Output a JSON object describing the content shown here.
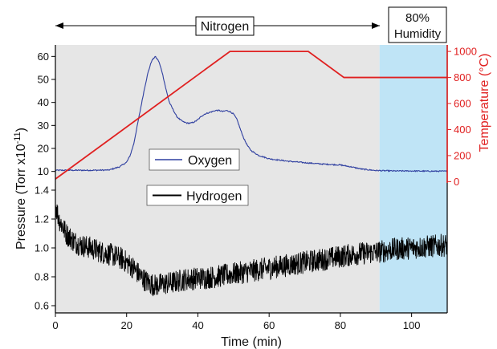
{
  "chart_data": [
    {
      "panel": "top",
      "type": "line",
      "ylabel_left": "Pressure (Torr x10",
      "ylabel_left_exponent": "-11",
      "ylabel_left_tail": ")",
      "ylabel_right": "Temperature (°C)",
      "xlim": [
        0,
        110
      ],
      "ylim_left": [
        5,
        65
      ],
      "ylim_right": [
        -10,
        1050
      ],
      "yticks_left": [
        10,
        20,
        30,
        40,
        50,
        60
      ],
      "yticks_right": [
        0,
        200,
        400,
        600,
        800,
        1000
      ],
      "legend": "Oxygen",
      "grid": false,
      "series": [
        {
          "name": "Oxygen",
          "axis": "left",
          "color": "#2f3fa0",
          "x": [
            0,
            5,
            10,
            15,
            18,
            20,
            21,
            22,
            23,
            24,
            25,
            26,
            27,
            28,
            29,
            30,
            31,
            32,
            33,
            34,
            35,
            36,
            37,
            38,
            39,
            40,
            41,
            42,
            43,
            44,
            45,
            46,
            47,
            48,
            49,
            50,
            51,
            52,
            53,
            54,
            55,
            57,
            60,
            65,
            70,
            75,
            80,
            83,
            86,
            90,
            95,
            100,
            105,
            110
          ],
          "y": [
            10.5,
            10.5,
            10.5,
            10.6,
            12,
            14,
            17,
            22,
            30,
            38,
            46,
            53,
            58,
            60,
            58,
            53,
            46,
            40,
            37,
            34,
            32.5,
            31.5,
            31,
            31,
            31.5,
            32.5,
            34,
            35,
            35.5,
            36,
            36.5,
            36.5,
            36,
            36.5,
            36,
            35,
            32.5,
            28,
            24,
            21,
            19,
            17,
            15.5,
            14.5,
            13.8,
            13.2,
            12.8,
            12,
            11,
            10.4,
            10.2,
            10.2,
            10.1,
            10.1
          ]
        },
        {
          "name": "Temperature",
          "axis": "right",
          "color": "#e02020",
          "x": [
            0,
            49,
            71,
            81,
            110
          ],
          "y": [
            20,
            1000,
            1000,
            800,
            800
          ]
        }
      ]
    },
    {
      "panel": "bottom",
      "type": "line",
      "xlabel": "Time (min)",
      "xlim": [
        0,
        110
      ],
      "ylim": [
        0.55,
        1.45
      ],
      "xticks": [
        0,
        20,
        40,
        60,
        80,
        100
      ],
      "yticks": [
        0.6,
        0.8,
        1.0,
        1.2,
        1.4
      ],
      "ytick_labels": [
        "0.6",
        "0.8",
        "1.0",
        "1.2",
        "1.4"
      ],
      "legend": "Hydrogen",
      "grid": false,
      "series": [
        {
          "name": "Hydrogen",
          "color": "#000000",
          "x": [
            0,
            1,
            2,
            3,
            5,
            7,
            10,
            13,
            16,
            19,
            22,
            24,
            26,
            28,
            30,
            33,
            36,
            40,
            45,
            50,
            55,
            60,
            65,
            70,
            75,
            80,
            85,
            90,
            95,
            100,
            105,
            110
          ],
          "y": [
            1.3,
            1.2,
            1.15,
            1.1,
            1.05,
            1.02,
            1.0,
            0.97,
            0.95,
            0.92,
            0.86,
            0.8,
            0.76,
            0.74,
            0.75,
            0.76,
            0.78,
            0.79,
            0.8,
            0.82,
            0.84,
            0.86,
            0.88,
            0.9,
            0.92,
            0.94,
            0.96,
            0.97,
            0.99,
            1.0,
            1.01,
            1.02
          ]
        }
      ]
    }
  ],
  "regions": {
    "nitrogen_label": "Nitrogen",
    "humidity_label_line1": "80%",
    "humidity_label_line2": "Humidity",
    "nitrogen_range": [
      0,
      91
    ],
    "humidity_range": [
      91,
      110
    ],
    "nitrogen_color": "#e6e6e6",
    "humidity_color": "#bfe4f6"
  },
  "shared_ylabel": "Pressure (Torr x10",
  "shared_ylabel_exponent": "-11",
  "shared_ylabel_tail": ")"
}
